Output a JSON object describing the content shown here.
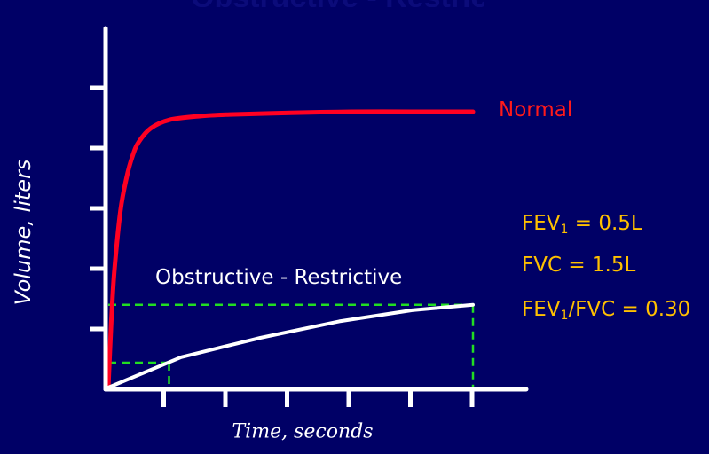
{
  "slide": {
    "title": "Obstructive - Restrictive"
  },
  "chart_data": {
    "type": "line",
    "title": "",
    "xlabel": "Time, seconds",
    "ylabel": "Volume, liters",
    "xlim": [
      0,
      6.5
    ],
    "ylim": [
      0,
      6
    ],
    "x_ticks": [
      1,
      2,
      3,
      4,
      5,
      6
    ],
    "y_ticks": [
      1,
      2,
      3,
      4,
      5
    ],
    "grid": false,
    "colors": {
      "background": "#000066",
      "axis": "#ffffff",
      "normal": "#ff0022",
      "obstructive_restrictive": "#ffffff",
      "guide": "#22dd22",
      "annotation": "#ffc000"
    },
    "series": [
      {
        "name": "Normal",
        "x": [
          0,
          0.05,
          0.1,
          0.2,
          0.3,
          0.4,
          0.5,
          0.7,
          1.0,
          1.5,
          2.0,
          3.0,
          4.0,
          5.0,
          6.0
        ],
        "y": [
          0,
          1.2,
          2.1,
          3.2,
          3.8,
          4.2,
          4.45,
          4.7,
          4.85,
          4.92,
          4.95,
          4.98,
          5.0,
          5.0,
          5.0
        ]
      },
      {
        "name": "Obstructive - Restrictive",
        "x": [
          0,
          1.2,
          2.5,
          3.8,
          5.0,
          6.0
        ],
        "y": [
          0,
          0.55,
          0.9,
          1.2,
          1.4,
          1.5
        ]
      }
    ],
    "guides": [
      {
        "name": "fev1",
        "x": 1.0,
        "y": 0.45
      },
      {
        "name": "fvc",
        "x": 6.0,
        "y": 1.5
      }
    ],
    "annotations": [
      {
        "lead": "FEV",
        "sub": "1",
        "rest": " = 0.5L"
      },
      {
        "text": "FVC = 1.5L"
      },
      {
        "lead": "FEV",
        "sub": "1",
        "rest": "/FVC = 0.30"
      }
    ]
  }
}
